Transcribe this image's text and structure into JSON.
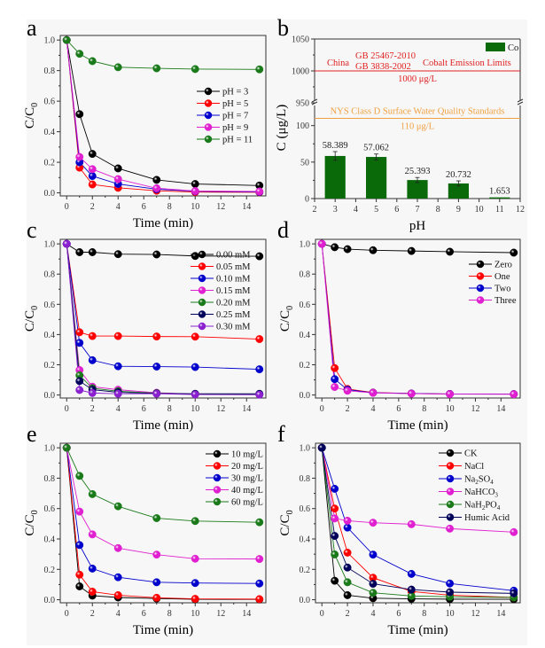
{
  "figure": {
    "panels": [
      "a",
      "b",
      "c",
      "d",
      "e",
      "f"
    ]
  },
  "chart_data": [
    {
      "id": "a",
      "panel_label": "a",
      "type": "line",
      "title": "",
      "xlabel": "Time (min)",
      "ylabel": "C/C0",
      "xlim": [
        -0.5,
        15.5
      ],
      "ylim": [
        -0.02,
        1.03
      ],
      "xticks": [
        0,
        2,
        4,
        6,
        8,
        10,
        12,
        14
      ],
      "yticks": [
        0.0,
        0.2,
        0.4,
        0.6,
        0.8,
        1.0
      ],
      "ytick_labels": [
        "0.0",
        "0.2",
        "0.4",
        "0.6",
        "0.8",
        "1.0"
      ],
      "legend_position": "center-right",
      "x": [
        0,
        1,
        2,
        4,
        7,
        10,
        15
      ],
      "series": [
        {
          "name": "pH = 3",
          "color": "#000000",
          "values": [
            1.0,
            0.515,
            0.255,
            0.16,
            0.085,
            0.058,
            0.048
          ]
        },
        {
          "name": "pH = 5",
          "color": "#ff0000",
          "values": [
            1.0,
            0.165,
            0.055,
            0.033,
            0.014,
            0.005,
            0.004
          ]
        },
        {
          "name": "pH = 7",
          "color": "#0000cc",
          "values": [
            1.0,
            0.2,
            0.11,
            0.058,
            0.024,
            0.01,
            0.006
          ]
        },
        {
          "name": "pH = 9",
          "color": "#e020d0",
          "values": [
            1.0,
            0.235,
            0.155,
            0.09,
            0.03,
            0.012,
            0.009
          ]
        },
        {
          "name": "pH = 11",
          "color": "#1a7a1a",
          "values": [
            1.0,
            0.91,
            0.862,
            0.822,
            0.815,
            0.81,
            0.808
          ]
        }
      ]
    },
    {
      "id": "b",
      "panel_label": "b",
      "type": "bar",
      "title": "",
      "xlabel": "pH",
      "ylabel": "C (μg/L)",
      "categories": [
        3,
        5,
        7,
        9,
        11
      ],
      "values": [
        58.389,
        57.062,
        25.393,
        20.732,
        1.653
      ],
      "value_labels": [
        "58.389",
        "57.062",
        "25.393",
        "20.732",
        "1.653"
      ],
      "errors": [
        6,
        4,
        3.5,
        3.5,
        0
      ],
      "bar_color": "#0a6a0a",
      "legend": [
        "Co"
      ],
      "legend_position": "top-right",
      "xlim": [
        2,
        12
      ],
      "xticks": [
        2,
        3,
        4,
        5,
        6,
        7,
        8,
        9,
        10,
        11,
        12
      ],
      "yaxis_break": {
        "lower": [
          0,
          130
        ],
        "upper": [
          950,
          1050
        ]
      },
      "yticks": [
        0,
        50,
        100,
        950,
        1000,
        1050
      ],
      "annotations": {
        "china_line_value": 1000,
        "china_label_left": "China",
        "china_label_std1": "GB 25467-2010",
        "china_label_std2": "GB 3838-2002",
        "china_label_right": "Cobalt Emission Limits",
        "china_value_label": "1000 μg/L",
        "china_color": "#e02020",
        "nys_line_value": 110,
        "nys_label": "NYS Class D Surface Water Quality Standards",
        "nys_value_label": "110 μg/L",
        "nys_color": "#f0a040"
      }
    },
    {
      "id": "c",
      "panel_label": "c",
      "type": "line",
      "xlabel": "Time (min)",
      "ylabel": "C/C0",
      "xlim": [
        -0.5,
        15.5
      ],
      "ylim": [
        -0.02,
        1.03
      ],
      "xticks": [
        0,
        2,
        4,
        6,
        8,
        10,
        12,
        14
      ],
      "yticks": [
        0.0,
        0.2,
        0.4,
        0.6,
        0.8,
        1.0
      ],
      "ytick_labels": [
        "0.0",
        "0.2",
        "0.4",
        "0.6",
        "0.8",
        "1.0"
      ],
      "legend_position": "top-right",
      "x": [
        0,
        1,
        2,
        4,
        7,
        10,
        15
      ],
      "series": [
        {
          "name": "0.00 mM",
          "color": "#000000",
          "values": [
            1.0,
            0.945,
            0.945,
            0.932,
            0.93,
            0.92,
            0.918
          ]
        },
        {
          "name": "0.05 mM",
          "color": "#ff0000",
          "values": [
            1.0,
            0.415,
            0.39,
            0.39,
            0.387,
            0.386,
            0.37
          ]
        },
        {
          "name": "0.10 mM",
          "color": "#0000cc",
          "values": [
            1.0,
            0.345,
            0.23,
            0.19,
            0.188,
            0.185,
            0.17
          ]
        },
        {
          "name": "0.15 mM",
          "color": "#e020d0",
          "values": [
            1.0,
            0.165,
            0.055,
            0.035,
            0.015,
            0.006,
            0.004
          ]
        },
        {
          "name": "0.20 mM",
          "color": "#1a7a1a",
          "values": [
            1.0,
            0.13,
            0.045,
            0.025,
            0.012,
            0.006,
            0.005
          ]
        },
        {
          "name": "0.25 mM",
          "color": "#00005a",
          "values": [
            1.0,
            0.092,
            0.035,
            0.018,
            0.01,
            0.008,
            0.008
          ]
        },
        {
          "name": "0.30 mM",
          "color": "#8a20d0",
          "values": [
            1.0,
            0.033,
            0.013,
            0.008,
            0.008,
            0.003,
            0.002
          ]
        }
      ]
    },
    {
      "id": "d",
      "panel_label": "d",
      "type": "line",
      "xlabel": "Time (min)",
      "ylabel": "C/C0",
      "xlim": [
        -0.5,
        15.5
      ],
      "ylim": [
        -0.02,
        1.03
      ],
      "xticks": [
        0,
        2,
        4,
        6,
        8,
        10,
        12,
        14
      ],
      "yticks": [
        0.0,
        0.2,
        0.4,
        0.6,
        0.8,
        1.0
      ],
      "ytick_labels": [
        "0.0",
        "0.2",
        "0.4",
        "0.6",
        "0.8",
        "1.0"
      ],
      "legend_position": "top-right",
      "x": [
        0,
        1,
        2,
        4,
        7,
        10,
        15
      ],
      "series": [
        {
          "name": "Zero",
          "color": "#000000",
          "values": [
            1.0,
            0.978,
            0.965,
            0.958,
            0.953,
            0.948,
            0.942
          ]
        },
        {
          "name": "One",
          "color": "#ff0000",
          "values": [
            1.0,
            0.178,
            0.04,
            0.016,
            0.01,
            0.007,
            0.006
          ]
        },
        {
          "name": "Two",
          "color": "#0000cc",
          "values": [
            1.0,
            0.105,
            0.035,
            0.015,
            0.01,
            0.007,
            0.006
          ]
        },
        {
          "name": "Three",
          "color": "#e020d0",
          "values": [
            1.0,
            0.053,
            0.028,
            0.014,
            0.009,
            0.006,
            0.005
          ]
        }
      ]
    },
    {
      "id": "e",
      "panel_label": "e",
      "type": "line",
      "xlabel": "Time (min)",
      "ylabel": "C/C0",
      "xlim": [
        -0.5,
        15.5
      ],
      "ylim": [
        -0.02,
        1.03
      ],
      "xticks": [
        0,
        2,
        4,
        6,
        8,
        10,
        12,
        14
      ],
      "yticks": [
        0.0,
        0.2,
        0.4,
        0.6,
        0.8,
        1.0
      ],
      "ytick_labels": [
        "0.0",
        "0.2",
        "0.4",
        "0.6",
        "0.8",
        "1.0"
      ],
      "legend_position": "top-right",
      "x": [
        0,
        1,
        2,
        4,
        7,
        10,
        15
      ],
      "series": [
        {
          "name": "10 mg/L",
          "color": "#000000",
          "values": [
            1.0,
            0.088,
            0.027,
            0.015,
            0.008,
            0.003,
            0.002
          ]
        },
        {
          "name": "20 mg/L",
          "color": "#ff0000",
          "values": [
            1.0,
            0.165,
            0.053,
            0.03,
            0.013,
            0.006,
            0.004
          ]
        },
        {
          "name": "30 mg/L",
          "color": "#0000cc",
          "values": [
            1.0,
            0.36,
            0.205,
            0.148,
            0.115,
            0.11,
            0.107
          ]
        },
        {
          "name": "40 mg/L",
          "color": "#e020d0",
          "values": [
            1.0,
            0.58,
            0.43,
            0.34,
            0.297,
            0.27,
            0.268
          ]
        },
        {
          "name": "60 mg/L",
          "color": "#1a7a1a",
          "values": [
            1.0,
            0.815,
            0.695,
            0.615,
            0.537,
            0.518,
            0.51
          ]
        }
      ]
    },
    {
      "id": "f",
      "panel_label": "f",
      "type": "line",
      "xlabel": "Time (min)",
      "ylabel": "C/C0",
      "xlim": [
        -0.5,
        15.5
      ],
      "ylim": [
        -0.02,
        1.03
      ],
      "xticks": [
        0,
        2,
        4,
        6,
        8,
        10,
        12,
        14
      ],
      "yticks": [
        0.0,
        0.2,
        0.4,
        0.6,
        0.8,
        1.0
      ],
      "ytick_labels": [
        "0.0",
        "0.2",
        "0.4",
        "0.6",
        "0.8",
        "1.0"
      ],
      "legend_position": "top-right",
      "x": [
        0,
        1,
        2,
        4,
        7,
        10,
        15
      ],
      "series": [
        {
          "name": "CK",
          "name_parts": [
            [
              "CK",
              ""
            ]
          ],
          "color": "#000000",
          "values": [
            1.0,
            0.125,
            0.03,
            0.01,
            0.006,
            0.004,
            0.003
          ]
        },
        {
          "name": "NaCl",
          "name_parts": [
            [
              "NaCl",
              ""
            ]
          ],
          "color": "#ff0000",
          "values": [
            1.0,
            0.6,
            0.31,
            0.145,
            0.055,
            0.03,
            0.015
          ]
        },
        {
          "name": "Na2SO4",
          "name_parts": [
            [
              "Na",
              ""
            ],
            [
              "2",
              "sub"
            ],
            [
              "SO",
              ""
            ],
            [
              "4",
              "sub"
            ]
          ],
          "color": "#0000cc",
          "values": [
            1.0,
            0.73,
            0.475,
            0.297,
            0.17,
            0.107,
            0.06
          ]
        },
        {
          "name": "NaHCO3",
          "name_parts": [
            [
              "NaHCO",
              ""
            ],
            [
              "3",
              "sub"
            ]
          ],
          "color": "#e020d0",
          "values": [
            1.0,
            0.535,
            0.52,
            0.507,
            0.497,
            0.468,
            0.445
          ]
        },
        {
          "name": "NaH2PO4",
          "name_parts": [
            [
              "NaH",
              ""
            ],
            [
              "2",
              "sub"
            ],
            [
              "PO",
              ""
            ],
            [
              "4",
              "sub"
            ]
          ],
          "color": "#1a7a1a",
          "values": [
            1.0,
            0.298,
            0.115,
            0.046,
            0.025,
            0.02,
            0.015
          ]
        },
        {
          "name": "Humic Acid",
          "name_parts": [
            [
              "Humic Acid",
              ""
            ]
          ],
          "color": "#00005a",
          "values": [
            1.0,
            0.42,
            0.212,
            0.105,
            0.067,
            0.05,
            0.042
          ]
        }
      ]
    }
  ]
}
